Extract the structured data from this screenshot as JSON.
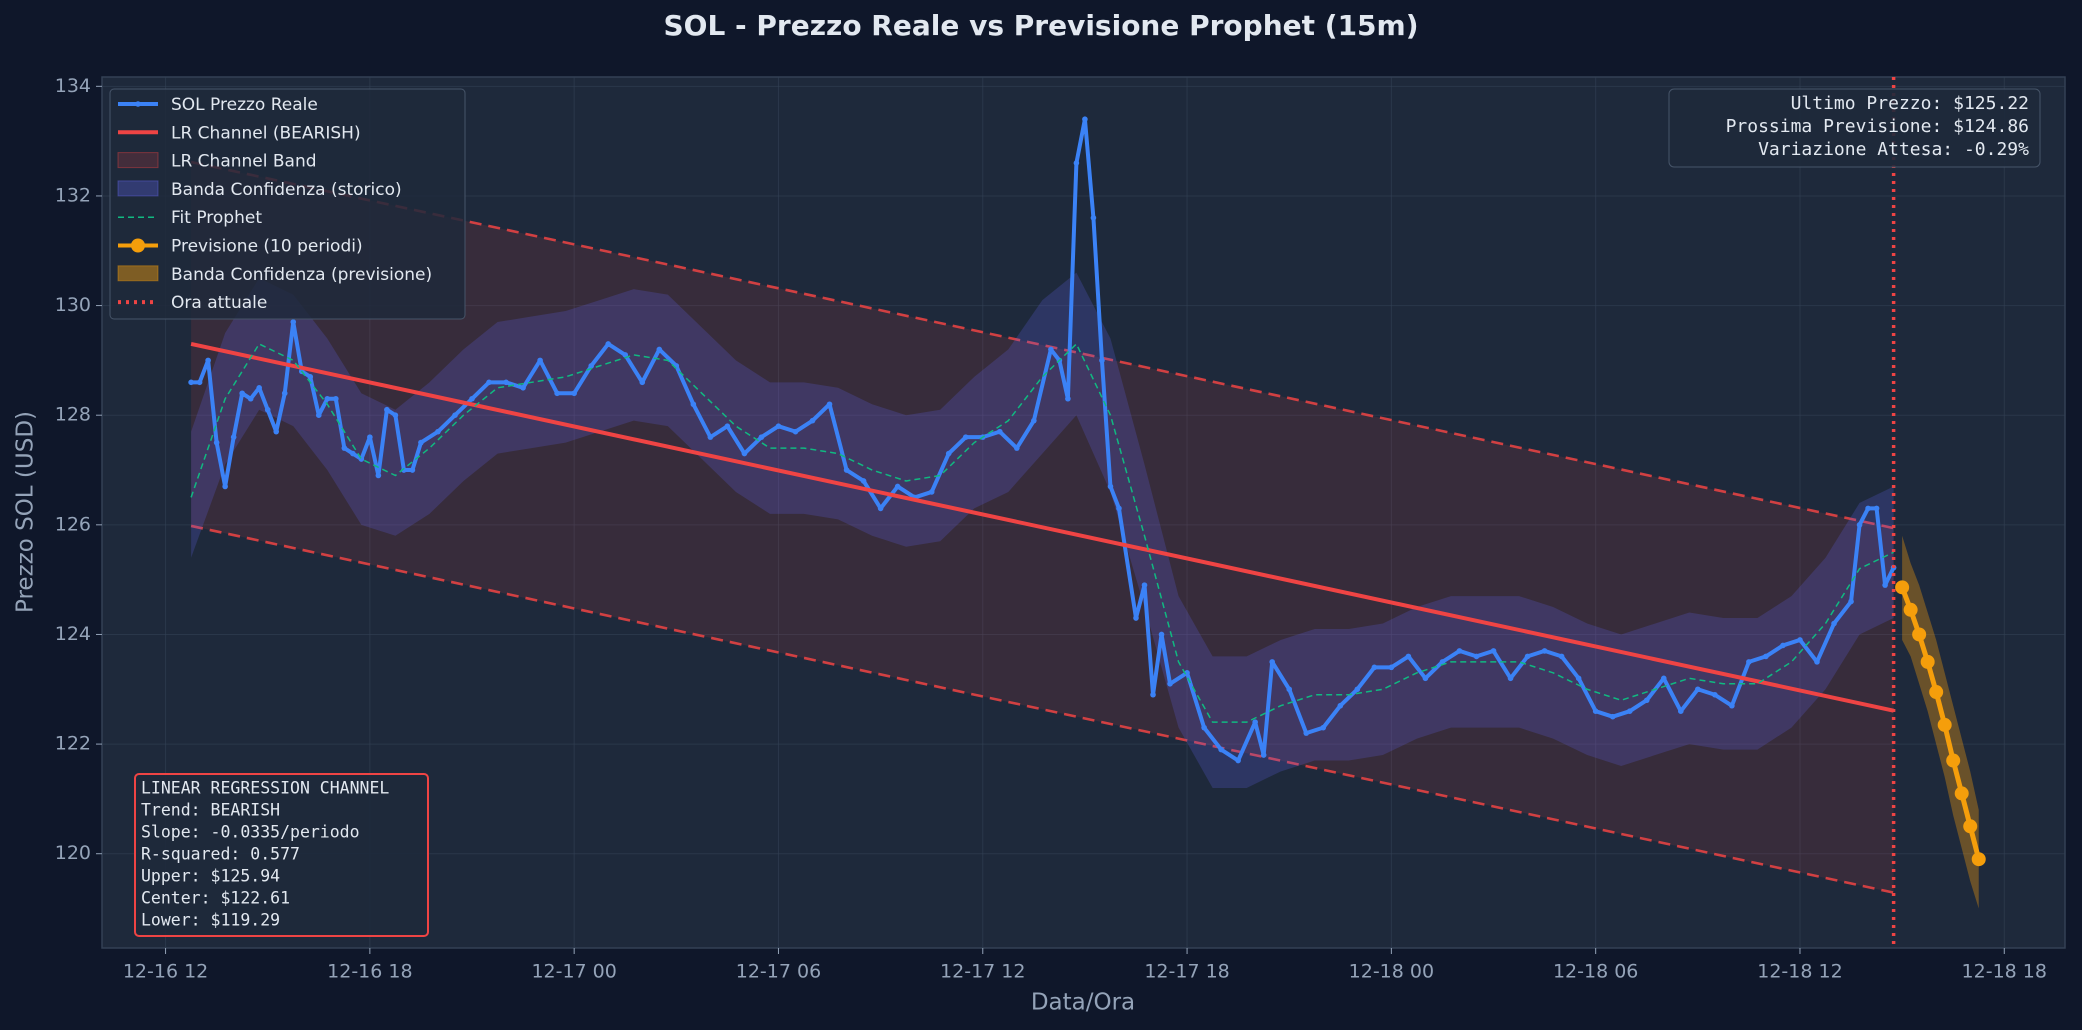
{
  "chart_data": {
    "type": "line",
    "title": "SOL - Prezzo Reale vs Previsione Prophet (15m)",
    "x_label": "Data/Ora",
    "y_label": "Prezzo SOL (USD)",
    "xlim": [
      "12-16 10:08",
      "12-18 19:47"
    ],
    "xticks": [
      "12-16 12",
      "12-16 18",
      "12-17 00",
      "12-17 06",
      "12-17 12",
      "12-17 18",
      "12-18 00",
      "12-18 06",
      "12-18 12",
      "12-18 18"
    ],
    "ylim": [
      118.28,
      134.17
    ],
    "yticks": [
      120,
      122,
      124,
      126,
      128,
      130,
      132,
      134
    ],
    "grid": true,
    "legend_position": "upper left",
    "series": [
      {
        "name": "SOL Prezzo Reale",
        "kind": "line",
        "color": "#3b82f6",
        "marker": true,
        "x": [
          "12-16 12:45",
          "12-16 13:00",
          "12-16 13:15",
          "12-16 13:30",
          "12-16 13:45",
          "12-16 14:00",
          "12-16 14:15",
          "12-16 14:30",
          "12-16 14:45",
          "12-16 15:00",
          "12-16 15:15",
          "12-16 15:30",
          "12-16 15:45",
          "12-16 16:00",
          "12-16 16:15",
          "12-16 16:30",
          "12-16 16:45",
          "12-16 17:00",
          "12-16 17:15",
          "12-16 17:30",
          "12-16 17:45",
          "12-16 18:00",
          "12-16 18:15",
          "12-16 18:30",
          "12-16 18:45",
          "12-16 19:00",
          "12-16 19:15",
          "12-16 19:30",
          "12-16 20:00",
          "12-16 20:30",
          "12-16 21:00",
          "12-16 21:30",
          "12-16 22:00",
          "12-16 22:30",
          "12-16 23:00",
          "12-16 23:30",
          "12-17 00:00",
          "12-17 00:30",
          "12-17 01:00",
          "12-17 01:30",
          "12-17 02:00",
          "12-17 02:30",
          "12-17 03:00",
          "12-17 03:30",
          "12-17 04:00",
          "12-17 04:30",
          "12-17 05:00",
          "12-17 05:30",
          "12-17 06:00",
          "12-17 06:30",
          "12-17 07:00",
          "12-17 07:30",
          "12-17 08:00",
          "12-17 08:30",
          "12-17 09:00",
          "12-17 09:30",
          "12-17 10:00",
          "12-17 10:30",
          "12-17 11:00",
          "12-17 11:30",
          "12-17 12:00",
          "12-17 12:30",
          "12-17 13:00",
          "12-17 13:30",
          "12-17 14:00",
          "12-17 14:15",
          "12-17 14:30",
          "12-17 14:45",
          "12-17 15:00",
          "12-17 15:15",
          "12-17 15:30",
          "12-17 15:45",
          "12-17 16:00",
          "12-17 16:30",
          "12-17 16:45",
          "12-17 17:00",
          "12-17 17:15",
          "12-17 17:30",
          "12-17 18:00",
          "12-17 18:30",
          "12-17 19:00",
          "12-17 19:30",
          "12-17 20:00",
          "12-17 20:15",
          "12-17 20:30",
          "12-17 21:00",
          "12-17 21:30",
          "12-17 22:00",
          "12-17 22:30",
          "12-17 23:00",
          "12-17 23:30",
          "12-18 00:00",
          "12-18 00:30",
          "12-18 01:00",
          "12-18 01:30",
          "12-18 02:00",
          "12-18 02:30",
          "12-18 03:00",
          "12-18 03:30",
          "12-18 04:00",
          "12-18 04:30",
          "12-18 05:00",
          "12-18 05:30",
          "12-18 06:00",
          "12-18 06:30",
          "12-18 07:00",
          "12-18 07:30",
          "12-18 08:00",
          "12-18 08:30",
          "12-18 09:00",
          "12-18 09:30",
          "12-18 10:00",
          "12-18 10:30",
          "12-18 11:00",
          "12-18 11:30",
          "12-18 12:00",
          "12-18 12:30",
          "12-18 13:00",
          "12-18 13:30",
          "12-18 13:45",
          "12-18 14:00",
          "12-18 14:15",
          "12-18 14:30",
          "12-18 14:45"
        ],
        "values": [
          128.6,
          128.6,
          129.0,
          127.5,
          126.7,
          127.6,
          128.4,
          128.3,
          128.5,
          128.1,
          127.7,
          128.4,
          129.7,
          128.8,
          128.7,
          128.0,
          128.3,
          128.3,
          127.4,
          127.3,
          127.2,
          127.6,
          126.9,
          128.1,
          128.0,
          127.0,
          127.0,
          127.5,
          127.7,
          128.0,
          128.3,
          128.6,
          128.6,
          128.5,
          129.0,
          128.4,
          128.4,
          128.9,
          129.3,
          129.1,
          128.6,
          129.2,
          128.9,
          128.2,
          127.6,
          127.8,
          127.3,
          127.6,
          127.8,
          127.7,
          127.9,
          128.2,
          127.0,
          126.8,
          126.3,
          126.7,
          126.5,
          126.6,
          127.3,
          127.6,
          127.6,
          127.7,
          127.4,
          127.9,
          129.2,
          129.0,
          128.3,
          132.6,
          133.4,
          131.6,
          129.0,
          126.7,
          126.3,
          124.3,
          124.9,
          122.9,
          124.0,
          123.1,
          123.3,
          122.3,
          121.9,
          121.7,
          122.4,
          121.8,
          123.5,
          123.0,
          122.2,
          122.3,
          122.7,
          123.0,
          123.4,
          123.4,
          123.6,
          123.2,
          123.5,
          123.7,
          123.6,
          123.7,
          123.2,
          123.6,
          123.7,
          123.6,
          123.2,
          122.6,
          122.5,
          122.6,
          122.8,
          123.2,
          122.6,
          123.0,
          122.9,
          122.7,
          123.5,
          123.6,
          123.8,
          123.9,
          123.5,
          124.2,
          124.6,
          126.0,
          126.3,
          126.3,
          124.9,
          125.22
        ]
      },
      {
        "name": "LR Channel (BEARISH)",
        "kind": "line",
        "color": "#ef4444",
        "x": [
          "12-16 12:45",
          "12-18 14:45"
        ],
        "values": [
          129.3,
          122.61
        ]
      },
      {
        "name": "LR Channel Band",
        "kind": "band",
        "color": "#ef4444",
        "edges": true,
        "x": [
          "12-16 12:45",
          "12-18 14:45"
        ],
        "lower": [
          125.98,
          119.29
        ],
        "upper": [
          132.62,
          125.94
        ]
      },
      {
        "name": "Banda Confidenza (storico)",
        "kind": "band",
        "color": "#6366f1",
        "x": [
          "12-16 12:45",
          "12-16 13:45",
          "12-16 14:45",
          "12-16 15:45",
          "12-16 16:45",
          "12-16 17:45",
          "12-16 18:45",
          "12-16 19:45",
          "12-16 20:45",
          "12-16 21:45",
          "12-16 22:45",
          "12-16 23:45",
          "12-17 00:45",
          "12-17 01:45",
          "12-17 02:45",
          "12-17 03:45",
          "12-17 04:45",
          "12-17 05:45",
          "12-17 06:45",
          "12-17 07:45",
          "12-17 08:45",
          "12-17 09:45",
          "12-17 10:45",
          "12-17 11:45",
          "12-17 12:45",
          "12-17 13:45",
          "12-17 14:45",
          "12-17 15:45",
          "12-17 16:45",
          "12-17 17:45",
          "12-17 18:45",
          "12-17 19:45",
          "12-17 20:45",
          "12-17 21:45",
          "12-17 22:45",
          "12-17 23:45",
          "12-18 00:45",
          "12-18 01:45",
          "12-18 02:45",
          "12-18 03:45",
          "12-18 04:45",
          "12-18 05:45",
          "12-18 06:45",
          "12-18 07:45",
          "12-18 08:45",
          "12-18 09:45",
          "12-18 10:45",
          "12-18 11:45",
          "12-18 12:45",
          "12-18 13:45",
          "12-18 14:45"
        ],
        "lower": [
          125.4,
          127.1,
          128.1,
          127.8,
          127.0,
          126.0,
          125.8,
          126.2,
          126.8,
          127.3,
          127.4,
          127.5,
          127.7,
          127.9,
          127.8,
          127.2,
          126.6,
          126.2,
          126.2,
          126.1,
          125.8,
          125.6,
          125.7,
          126.3,
          126.6,
          127.3,
          128.0,
          126.6,
          124.5,
          122.3,
          121.2,
          121.2,
          121.5,
          121.7,
          121.7,
          121.8,
          122.1,
          122.3,
          122.3,
          122.3,
          122.1,
          121.8,
          121.6,
          121.8,
          122.0,
          121.9,
          121.9,
          122.3,
          123.0,
          124.0,
          124.3
        ],
        "upper": [
          127.7,
          129.5,
          130.5,
          130.2,
          129.4,
          128.4,
          128.1,
          128.6,
          129.2,
          129.7,
          129.8,
          129.9,
          130.1,
          130.3,
          130.2,
          129.6,
          129.0,
          128.6,
          128.6,
          128.5,
          128.2,
          128.0,
          128.1,
          128.7,
          129.2,
          130.1,
          130.6,
          129.4,
          127.1,
          124.7,
          123.6,
          123.6,
          123.9,
          124.1,
          124.1,
          124.2,
          124.5,
          124.7,
          124.7,
          124.7,
          124.5,
          124.2,
          124.0,
          124.2,
          124.4,
          124.3,
          124.3,
          124.7,
          125.4,
          126.4,
          126.7
        ]
      },
      {
        "name": "Fit Prophet",
        "kind": "line",
        "color": "#10b981",
        "dash": "dashed",
        "x": [
          "12-16 12:45",
          "12-16 13:45",
          "12-16 14:45",
          "12-16 15:45",
          "12-16 16:45",
          "12-16 17:45",
          "12-16 18:45",
          "12-16 19:45",
          "12-16 20:45",
          "12-16 21:45",
          "12-16 22:45",
          "12-16 23:45",
          "12-17 00:45",
          "12-17 01:45",
          "12-17 02:45",
          "12-17 03:45",
          "12-17 04:45",
          "12-17 05:45",
          "12-17 06:45",
          "12-17 07:45",
          "12-17 08:45",
          "12-17 09:45",
          "12-17 10:45",
          "12-17 11:45",
          "12-17 12:45",
          "12-17 13:45",
          "12-17 14:45",
          "12-17 15:45",
          "12-17 16:45",
          "12-17 17:45",
          "12-17 18:45",
          "12-17 19:45",
          "12-17 20:45",
          "12-17 21:45",
          "12-17 22:45",
          "12-17 23:45",
          "12-18 00:45",
          "12-18 01:45",
          "12-18 02:45",
          "12-18 03:45",
          "12-18 04:45",
          "12-18 05:45",
          "12-18 06:45",
          "12-18 07:45",
          "12-18 08:45",
          "12-18 09:45",
          "12-18 10:45",
          "12-18 11:45",
          "12-18 12:45",
          "12-18 13:45",
          "12-18 14:45"
        ],
        "values": [
          126.5,
          128.3,
          129.3,
          129.0,
          128.2,
          127.2,
          126.9,
          127.4,
          128.0,
          128.5,
          128.6,
          128.7,
          128.9,
          129.1,
          129.0,
          128.4,
          127.8,
          127.4,
          127.4,
          127.3,
          127.0,
          126.8,
          126.9,
          127.5,
          127.9,
          128.7,
          129.3,
          128.0,
          125.8,
          123.5,
          122.4,
          122.4,
          122.7,
          122.9,
          122.9,
          123.0,
          123.3,
          123.5,
          123.5,
          123.5,
          123.3,
          123.0,
          122.8,
          123.0,
          123.2,
          123.1,
          123.1,
          123.5,
          124.2,
          125.2,
          125.5
        ]
      },
      {
        "name": "Previsione (10 periodi)",
        "kind": "line",
        "color": "#f59e0b",
        "marker": true,
        "x": [
          "12-18 15:00",
          "12-18 15:15",
          "12-18 15:30",
          "12-18 15:45",
          "12-18 16:00",
          "12-18 16:15",
          "12-18 16:30",
          "12-18 16:45",
          "12-18 17:00",
          "12-18 17:15"
        ],
        "values": [
          124.86,
          124.45,
          124.0,
          123.5,
          122.95,
          122.35,
          121.7,
          121.1,
          120.5,
          119.9
        ]
      },
      {
        "name": "Banda Confidenza (previsione)",
        "kind": "band",
        "color": "#f59e0b",
        "x": [
          "12-18 15:00",
          "12-18 15:15",
          "12-18 15:30",
          "12-18 15:45",
          "12-18 16:00",
          "12-18 16:15",
          "12-18 16:30",
          "12-18 16:45",
          "12-18 17:00",
          "12-18 17:15"
        ],
        "lower": [
          123.9,
          123.6,
          123.1,
          122.6,
          122.0,
          121.4,
          120.7,
          120.1,
          119.5,
          119.0
        ],
        "upper": [
          125.8,
          125.3,
          124.9,
          124.4,
          123.9,
          123.3,
          122.7,
          122.1,
          121.5,
          120.8
        ]
      },
      {
        "name": "Ora attuale",
        "kind": "vline",
        "color": "#ef4444",
        "dash": "dotted",
        "x": [
          "12-18 14:45"
        ]
      }
    ],
    "info_box": [
      "Ultimo Prezzo: $125.22",
      "Prossima Previsione: $124.86",
      "Variazione Attesa: -0.29%"
    ],
    "channel_box": [
      "LINEAR REGRESSION CHANNEL",
      "Trend: BEARISH",
      "Slope: -0.0335/periodo",
      "R-squared: 0.577",
      "Upper: $125.94",
      "Center: $122.61",
      "Lower: $119.29"
    ]
  }
}
